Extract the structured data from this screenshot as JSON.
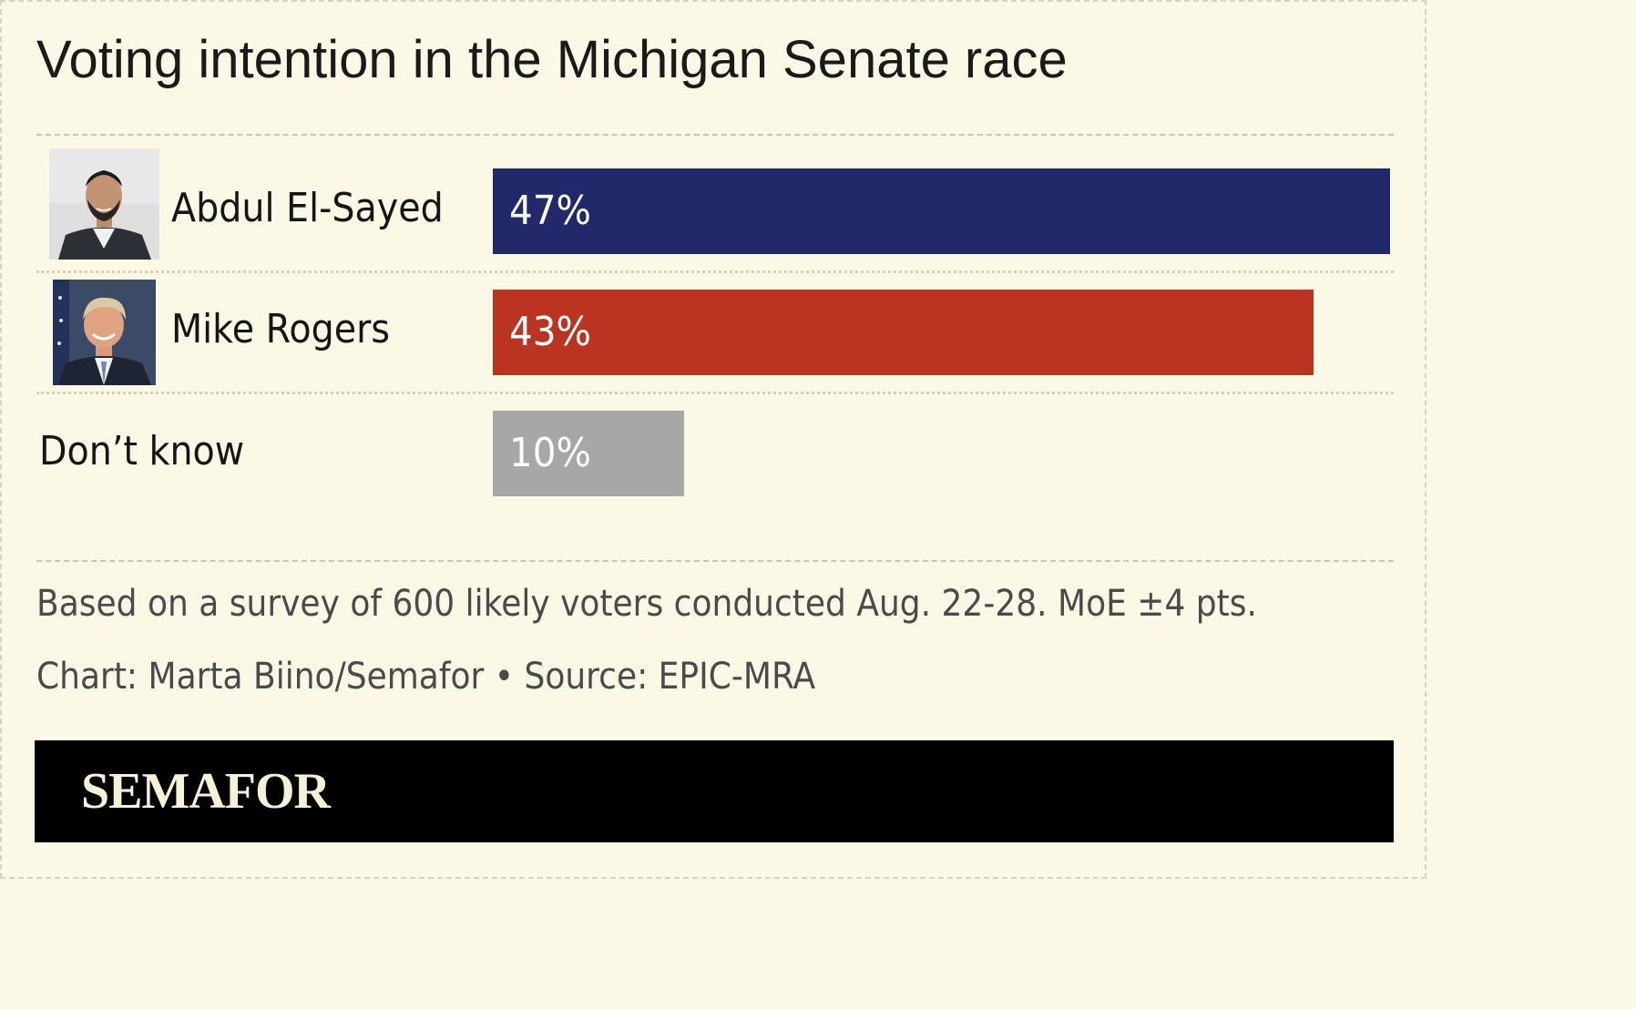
{
  "title": "Voting intention in the Michigan Senate race",
  "chart_data": {
    "type": "bar",
    "orientation": "horizontal",
    "categories": [
      "Abdul El-Sayed",
      "Mike Rogers",
      "Don’t know"
    ],
    "values": [
      47,
      43,
      10
    ],
    "value_labels": [
      "47%",
      "43%",
      "10%"
    ],
    "colors": [
      "#22296a",
      "#bb3321",
      "#a7a7a7"
    ],
    "xlim": [
      0,
      47
    ],
    "title": "Voting intention in the Michigan Senate race",
    "xlabel": "",
    "ylabel": ""
  },
  "candidates": [
    {
      "name": "Abdul El-Sayed",
      "photo": "headshot-abdul-el-sayed"
    },
    {
      "name": "Mike Rogers",
      "photo": "headshot-mike-rogers"
    }
  ],
  "note": "Based on a survey of 600 likely voters conducted Aug. 22-28. MoE ±4 pts.",
  "credit": "Chart: Marta Biino/Semafor • Source: EPIC-MRA",
  "brand": "SEMAFOR",
  "colors": {
    "background": "#fbf8e5",
    "footer": "#000000",
    "logo": "#f7f1d8"
  }
}
